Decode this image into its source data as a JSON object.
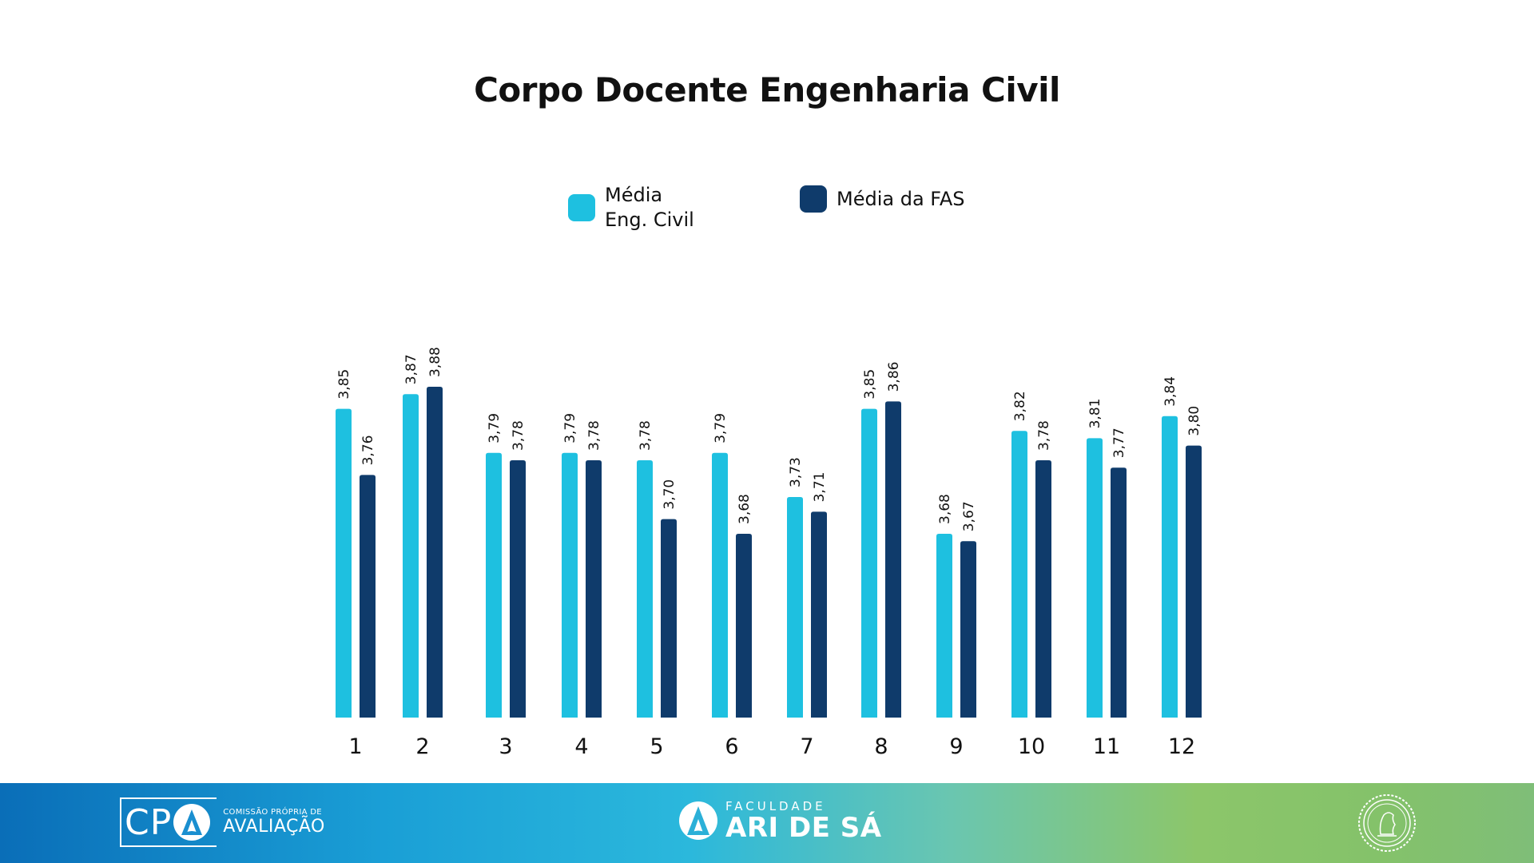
{
  "colors": {
    "series_eng": "#1ec0e0",
    "series_fas": "#0f3b6b",
    "text": "#111111"
  },
  "chart_data": {
    "type": "bar",
    "title": "Corpo Docente Engenharia Civil",
    "categories": [
      "1",
      "2",
      "3",
      "4",
      "5",
      "6",
      "7",
      "8",
      "9",
      "10",
      "11",
      "12"
    ],
    "series": [
      {
        "name": "Média\nEng. Civil",
        "values": [
          3.85,
          3.87,
          3.79,
          3.79,
          3.78,
          3.79,
          3.73,
          3.85,
          3.68,
          3.82,
          3.81,
          3.84
        ],
        "labels": [
          "3,85",
          "3,87",
          "3,79",
          "3,79",
          "3,78",
          "3,79",
          "3,73",
          "3,85",
          "3,68",
          "3,82",
          "3,81",
          "3,84"
        ]
      },
      {
        "name": "Média da FAS",
        "values": [
          3.76,
          3.88,
          3.78,
          3.78,
          3.7,
          3.68,
          3.71,
          3.86,
          3.67,
          3.78,
          3.77,
          3.8
        ],
        "labels": [
          "3,76",
          "3,88",
          "3,78",
          "3,78",
          "3,70",
          "3,68",
          "3,71",
          "3,86",
          "3,67",
          "3,78",
          "3,77",
          "3,80"
        ]
      }
    ],
    "legend_position": "top-center",
    "grid": false,
    "y_axis_visible": false
  },
  "footer": {
    "cpa_letters": "CP",
    "cpa_small": "COMISSÃO PRÓPRIA DE",
    "cpa_big": "AVALIAÇÃO",
    "fas_small": "FACULDADE",
    "fas_big": "ARI DE SÁ",
    "seal_icon": "institution-seal-icon"
  }
}
